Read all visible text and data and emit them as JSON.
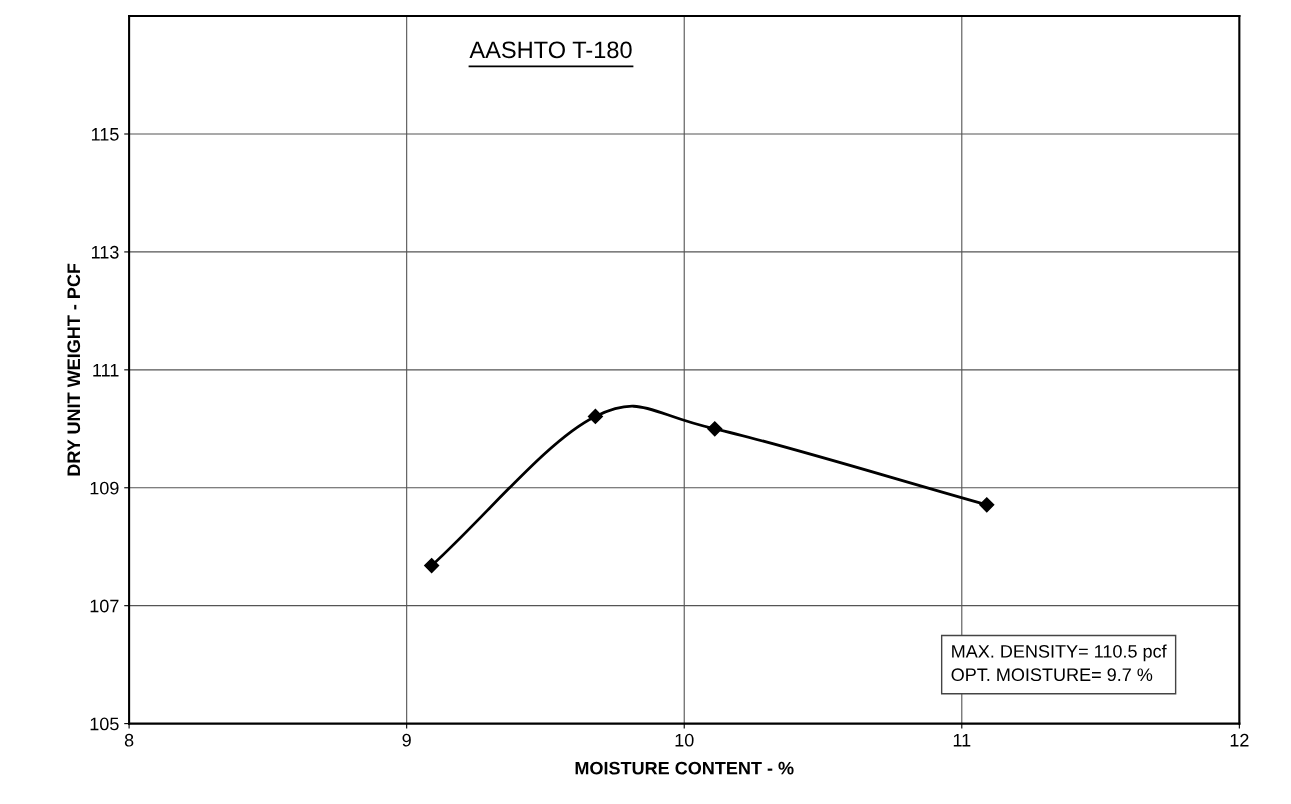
{
  "chart_data": {
    "type": "line",
    "title": "AASHTO T-180",
    "xlabel": "MOISTURE CONTENT - %",
    "ylabel": "DRY UNIT WEIGHT - PCF",
    "x": [
      9.09,
      9.68,
      10.11,
      11.09
    ],
    "series": [
      {
        "color": "#000000",
        "values": [
          107.68,
          110.21,
          110.0,
          108.71
        ]
      }
    ],
    "xlim": [
      8,
      12
    ],
    "xticks": [
      8,
      9,
      10,
      11,
      12
    ],
    "ylim": [
      105,
      117
    ],
    "yticks": [
      105,
      107,
      109,
      111,
      113,
      115
    ],
    "grid": true,
    "marker": "diamond",
    "line_style": "solid",
    "annotations": [
      "MAX. DENSITY= 110.5 pcf\nOPT. MOISTURE= 9.7 %"
    ]
  }
}
